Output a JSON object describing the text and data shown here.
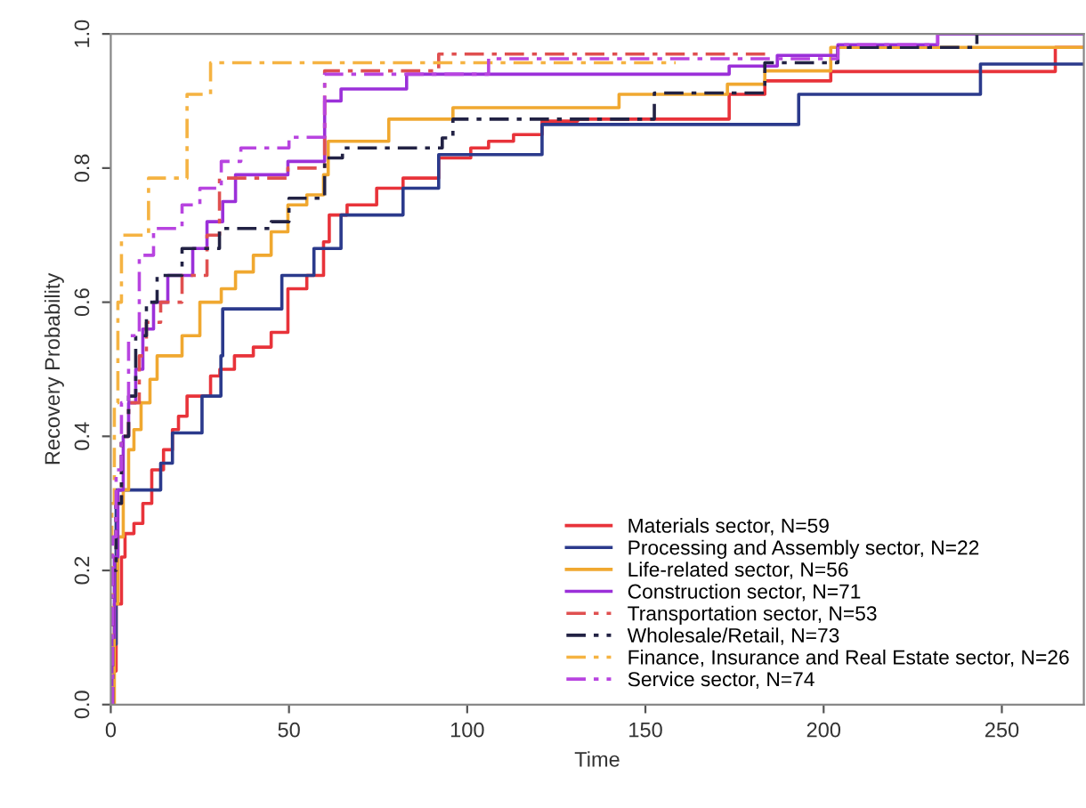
{
  "chart_data": {
    "type": "step",
    "xlabel": "Time",
    "ylabel": "Recovery Probability",
    "xlim": [
      0,
      273
    ],
    "ylim": [
      0,
      1
    ],
    "xticks": [
      0,
      50,
      100,
      150,
      200,
      250
    ],
    "yticks": [
      {
        "value": 0,
        "label": "0.0"
      },
      {
        "value": 0.2,
        "label": "0.2"
      },
      {
        "value": 0.4,
        "label": "0.4"
      },
      {
        "value": 0.6,
        "label": "0.6"
      },
      {
        "value": 0.8,
        "label": "0.8"
      },
      {
        "value": 1,
        "label": "1.0"
      }
    ],
    "grid": false,
    "legend": "bottom right",
    "series": [
      {
        "name": "Materials sector, N=59",
        "color": "#e8333a",
        "line_style": "solid",
        "x": [
          0,
          0.6,
          1.5,
          3,
          4,
          6.5,
          9,
          11.5,
          14.8,
          17.3,
          19,
          21.4,
          28,
          30.6,
          34.7,
          40,
          45,
          49.7,
          55,
          59.7,
          61.3,
          66.3,
          74.6,
          82,
          92,
          101,
          106,
          113,
          121,
          131,
          173.5,
          183.5,
          202,
          265,
          273
        ],
        "values": [
          0,
          0.05,
          0.15,
          0.22,
          0.255,
          0.27,
          0.3,
          0.35,
          0.38,
          0.41,
          0.43,
          0.46,
          0.49,
          0.5,
          0.52,
          0.533,
          0.555,
          0.62,
          0.64,
          0.69,
          0.73,
          0.745,
          0.77,
          0.785,
          0.815,
          0.83,
          0.84,
          0.85,
          0.87,
          0.873,
          0.91,
          0.93,
          0.944,
          0.98,
          0.98
        ]
      },
      {
        "name": "Processing and Assembly sector, N=22",
        "color": "#2b3a8c",
        "line_style": "solid",
        "x": [
          0,
          0.5,
          1.5,
          14,
          17.3,
          25.6,
          30.9,
          31.4,
          48,
          57,
          64.6,
          82,
          92,
          121,
          193,
          244,
          273
        ],
        "values": [
          0,
          0.09,
          0.32,
          0.36,
          0.405,
          0.46,
          0.52,
          0.59,
          0.64,
          0.68,
          0.73,
          0.77,
          0.82,
          0.865,
          0.91,
          0.955,
          0.955
        ]
      },
      {
        "name": "Life-related sector, N=56",
        "color": "#f0a830",
        "line_style": "solid",
        "x": [
          0,
          1,
          2,
          3.5,
          5,
          6.5,
          8.5,
          11,
          13,
          20,
          25,
          31,
          35,
          40,
          45,
          49.7,
          55,
          59.7,
          61,
          78,
          96,
          142.6,
          173,
          183.5,
          202,
          273
        ],
        "values": [
          0,
          0.15,
          0.25,
          0.32,
          0.38,
          0.41,
          0.45,
          0.485,
          0.52,
          0.55,
          0.6,
          0.62,
          0.645,
          0.67,
          0.705,
          0.745,
          0.76,
          0.79,
          0.84,
          0.873,
          0.89,
          0.91,
          0.925,
          0.945,
          0.98,
          0.98
        ]
      },
      {
        "name": "Construction sector, N=71",
        "color": "#9b30d9",
        "line_style": "solid",
        "x": [
          0,
          0.3,
          1,
          2,
          3.5,
          5,
          7,
          9,
          12,
          16,
          23,
          27,
          31.4,
          35,
          49.7,
          60,
          64.6,
          83,
          173.5,
          187,
          204,
          232,
          273
        ],
        "values": [
          0,
          0.1,
          0.22,
          0.32,
          0.4,
          0.45,
          0.5,
          0.56,
          0.6,
          0.64,
          0.68,
          0.72,
          0.75,
          0.79,
          0.81,
          0.9,
          0.918,
          0.94,
          0.952,
          0.968,
          0.984,
          1.0,
          1.0
        ]
      },
      {
        "name": "Transportation sector, N=53",
        "color": "#e05050",
        "line_style": "dashed",
        "x": [
          0,
          0.5,
          1.5,
          3,
          5,
          8,
          10,
          14,
          20,
          27,
          30.5,
          49.7,
          60,
          92,
          185
        ],
        "values": [
          0,
          0.2,
          0.3,
          0.4,
          0.45,
          0.52,
          0.57,
          0.6,
          0.64,
          0.7,
          0.785,
          0.8,
          0.945,
          0.97,
          0.97
        ]
      },
      {
        "name": "Wholesale/Retail, N=73",
        "color": "#222244",
        "line_style": "dashed",
        "x": [
          0,
          0.5,
          1.5,
          3,
          5,
          7,
          10,
          13,
          20,
          30.5,
          45,
          50,
          60,
          65,
          93,
          96,
          152.5,
          183.5,
          204,
          243
        ],
        "values": [
          0,
          0.2,
          0.3,
          0.4,
          0.46,
          0.55,
          0.6,
          0.64,
          0.68,
          0.71,
          0.72,
          0.755,
          0.815,
          0.83,
          0.845,
          0.873,
          0.912,
          0.957,
          0.98,
          1.0
        ]
      },
      {
        "name": "Finance, Insurance and Real Estate sector, N=26",
        "color": "#f5b342",
        "line_style": "dashed",
        "x": [
          0,
          0.3,
          1,
          2,
          3,
          10.6,
          21.4,
          28,
          158.5
        ],
        "values": [
          0,
          0.3,
          0.45,
          0.6,
          0.7,
          0.785,
          0.91,
          0.957,
          0.957
        ]
      },
      {
        "name": "Service sector, N=74",
        "color": "#b844e0",
        "line_style": "dashed",
        "x": [
          0,
          0.5,
          1.5,
          3,
          5,
          8,
          12,
          20,
          25,
          31,
          36.5,
          50,
          60,
          106,
          204,
          232
        ],
        "values": [
          0,
          0.25,
          0.35,
          0.45,
          0.55,
          0.67,
          0.71,
          0.745,
          0.77,
          0.81,
          0.83,
          0.846,
          0.94,
          0.963,
          0.984,
          1.0
        ]
      }
    ]
  }
}
